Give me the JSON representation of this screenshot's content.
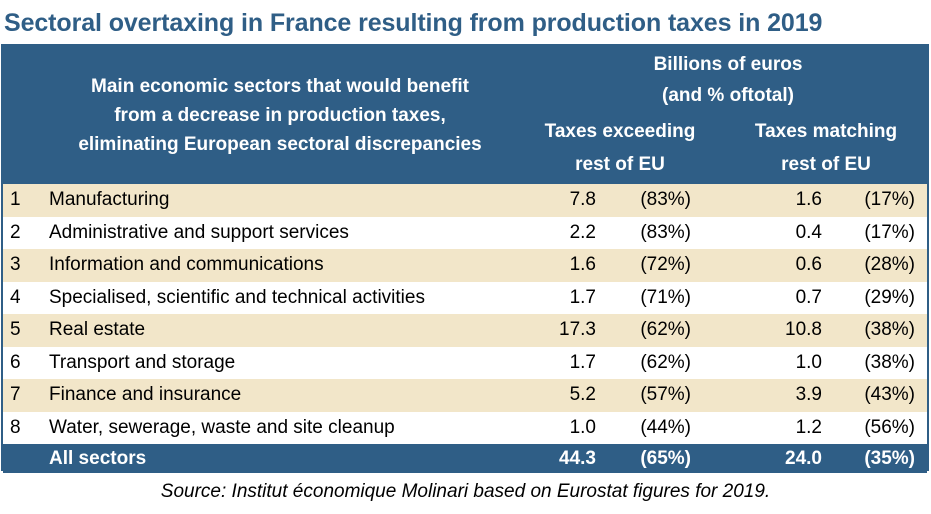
{
  "title": "Sectoral overtaxing in France resulting from production taxes in 2019",
  "header": {
    "sector_desc_lines": [
      "Main economic sectors that would benefit",
      "from a decrease in production taxes,",
      "eliminating European sectoral discrepancies"
    ],
    "unit_lines": [
      "Billions of euros",
      "(and % oftotal)"
    ],
    "col1_lines": [
      "Taxes exceeding",
      "rest of EU"
    ],
    "col2_lines": [
      "Taxes matching",
      "rest of EU"
    ]
  },
  "chart_data": {
    "type": "table",
    "title": "Sectoral overtaxing in France resulting from production taxes in 2019",
    "columns": [
      "",
      "Main economic sectors that would benefit from a decrease in production taxes, eliminating European sectoral discrepancies",
      "Taxes exceeding rest of EU",
      "Taxes matching rest of EU"
    ],
    "rows": [
      {
        "num": "1",
        "sector": "Manufacturing",
        "exceeding": "7.8",
        "exceeding_pct": "(83%)",
        "matching": "1.6",
        "matching_pct": "(17%)"
      },
      {
        "num": "2",
        "sector": "Administrative and support services",
        "exceeding": "2.2",
        "exceeding_pct": "(83%)",
        "matching": "0.4",
        "matching_pct": "(17%)"
      },
      {
        "num": "3",
        "sector": "Information and communications",
        "exceeding": "1.6",
        "exceeding_pct": "(72%)",
        "matching": "0.6",
        "matching_pct": "(28%)"
      },
      {
        "num": "4",
        "sector": "Specialised, scientific and technical activities",
        "exceeding": "1.7",
        "exceeding_pct": "(71%)",
        "matching": "0.7",
        "matching_pct": "(29%)"
      },
      {
        "num": "5",
        "sector": "Real estate",
        "exceeding": "17.3",
        "exceeding_pct": "(62%)",
        "matching": "10.8",
        "matching_pct": "(38%)"
      },
      {
        "num": "6",
        "sector": "Transport and storage",
        "exceeding": "1.7",
        "exceeding_pct": "(62%)",
        "matching": "1.0",
        "matching_pct": "(38%)"
      },
      {
        "num": "7",
        "sector": "Finance and insurance",
        "exceeding": "5.2",
        "exceeding_pct": "(57%)",
        "matching": "3.9",
        "matching_pct": "(43%)"
      },
      {
        "num": "8",
        "sector": "Water, sewerage, waste and site cleanup",
        "exceeding": "1.0",
        "exceeding_pct": "(44%)",
        "matching": "1.2",
        "matching_pct": "(56%)"
      }
    ],
    "total": {
      "sector": "All sectors",
      "exceeding": "44.3",
      "exceeding_pct": "(65%)",
      "matching": "24.0",
      "matching_pct": "(35%)"
    }
  },
  "source": "Source: Institut économique  Molinari based on Eurostat figures for 2019.",
  "colors": {
    "header_blue": "#2f5e86",
    "band_beige": "#f2e6c9",
    "title_blue": "#2f5e86"
  }
}
